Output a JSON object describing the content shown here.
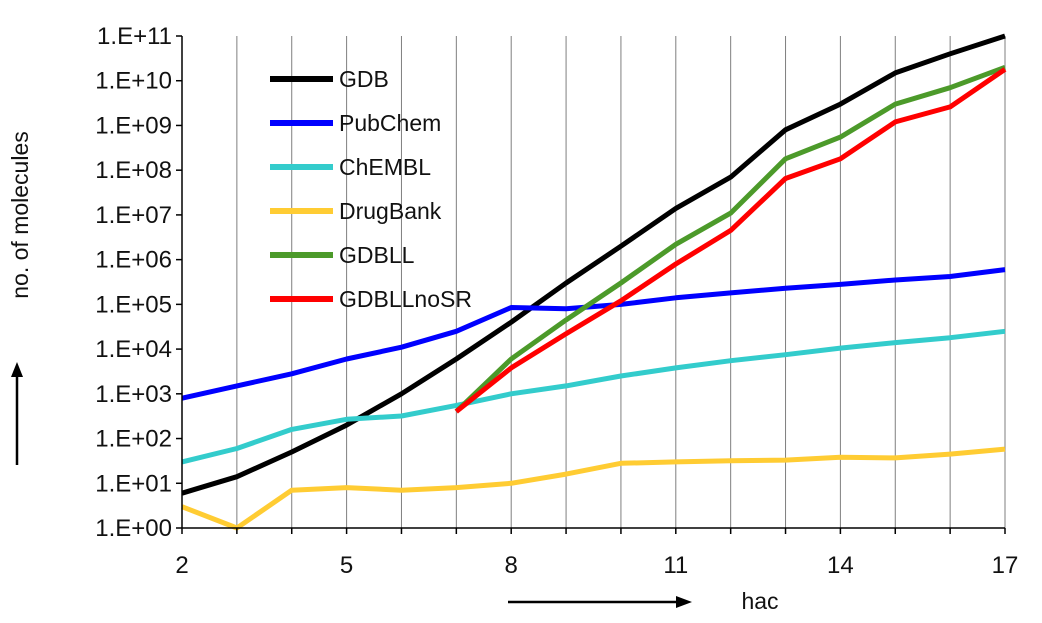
{
  "chart_data": {
    "type": "line",
    "title": "",
    "xlabel": "hac",
    "ylabel": "no. of molecules",
    "x_ticks": [
      "2",
      "5",
      "8",
      "11",
      "14",
      "17"
    ],
    "x_tick_values": [
      2,
      5,
      8,
      11,
      14,
      17
    ],
    "xlim": [
      2,
      17
    ],
    "y_scale": "log",
    "ylim": [
      1,
      100000000000
    ],
    "y_ticks": [
      "1.E+00",
      "1.E+01",
      "1.E+02",
      "1.E+03",
      "1.E+04",
      "1.E+05",
      "1.E+06",
      "1.E+07",
      "1.E+08",
      "1.E+09",
      "1.E+10",
      "1.E+11"
    ],
    "grid": "vertical",
    "legend_position": "top-left",
    "series": [
      {
        "name": "GDB",
        "color": "#000000",
        "x": [
          2,
          3,
          4,
          5,
          6,
          7,
          8,
          9,
          10,
          11,
          12,
          13,
          14,
          15,
          16,
          17
        ],
        "values": [
          6,
          14,
          50,
          200,
          1000,
          6000,
          40000,
          300000,
          2000000,
          14000000,
          70000000,
          800000000,
          3000000000,
          15000000000,
          40000000000,
          100000000000
        ]
      },
      {
        "name": "PubChem",
        "color": "#0000ff",
        "x": [
          2,
          3,
          4,
          5,
          6,
          7,
          8,
          9,
          10,
          11,
          12,
          13,
          14,
          15,
          16,
          17
        ],
        "values": [
          800,
          1500,
          2800,
          6000,
          11000,
          25000,
          85000,
          80000,
          100000,
          140000,
          180000,
          230000,
          280000,
          350000,
          420000,
          600000
        ]
      },
      {
        "name": "ChEMBL",
        "color": "#33cccc",
        "x": [
          2,
          3,
          4,
          5,
          6,
          7,
          8,
          9,
          10,
          11,
          12,
          13,
          14,
          15,
          16,
          17
        ],
        "values": [
          30,
          60,
          160,
          270,
          320,
          550,
          1000,
          1500,
          2500,
          3800,
          5500,
          7500,
          10500,
          14000,
          18000,
          25000
        ]
      },
      {
        "name": "DrugBank",
        "color": "#ffcc33",
        "x": [
          2,
          3,
          4,
          5,
          6,
          7,
          8,
          9,
          10,
          11,
          12,
          13,
          14,
          15,
          16,
          17
        ],
        "values": [
          3,
          1,
          7,
          8,
          7,
          8,
          10,
          16,
          28,
          30,
          32,
          33,
          38,
          37,
          45,
          58
        ]
      },
      {
        "name": "GDBLL",
        "color": "#4c9a2a",
        "x": [
          7,
          8,
          9,
          10,
          11,
          12,
          13,
          14,
          15,
          16,
          17
        ],
        "values": [
          400,
          6000,
          45000,
          300000,
          2200000,
          11000000,
          180000000,
          550000000,
          3000000000,
          7000000000,
          20000000000
        ]
      },
      {
        "name": "GDBLLnoSR",
        "color": "#ff0000",
        "x": [
          7,
          8,
          9,
          10,
          11,
          12,
          13,
          14,
          15,
          16,
          17
        ],
        "values": [
          400,
          3800,
          22000,
          120000,
          800000,
          4500000,
          65000000,
          180000000,
          1200000000,
          2600000000,
          18000000000
        ]
      }
    ]
  }
}
